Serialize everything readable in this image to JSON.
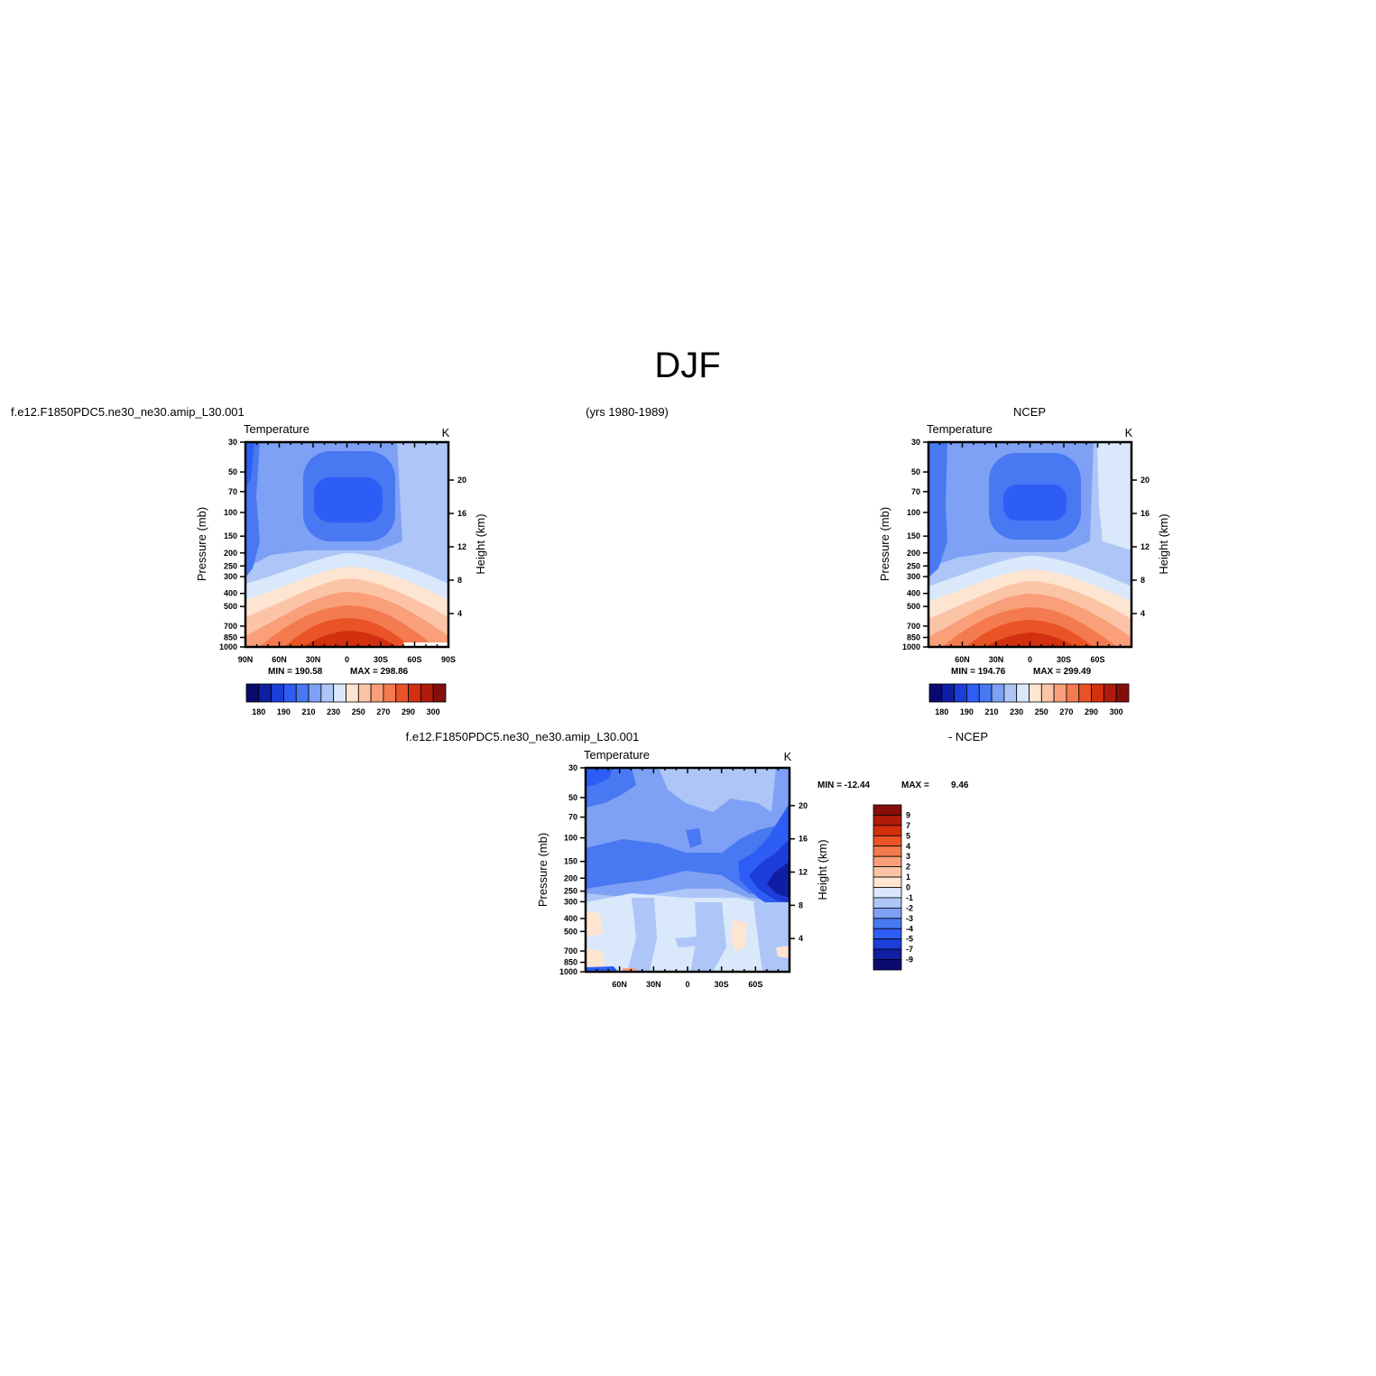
{
  "page": {
    "title": "DJF"
  },
  "labels": {
    "model_case": "f.e12.F1850PDC5.ne30_ne30.amip_L30.001",
    "years": "(yrs 1980-1989)",
    "obs_name": "NCEP",
    "diff_case": "f.e12.F1850PDC5.ne30_ne30.amip_L30.001",
    "diff_minus": "- NCEP"
  },
  "colors": {
    "abs_levels": [
      "#0a0a6e",
      "#0f1fa3",
      "#1d3dd8",
      "#2e5df5",
      "#4878f2",
      "#7ea1f5",
      "#aec6f7",
      "#d9e8fb",
      "#fde5d2",
      "#fcc4a6",
      "#f99f7a",
      "#f47a4f",
      "#ea5326",
      "#d33010",
      "#b01a0a",
      "#840f0a"
    ],
    "diff_levels": [
      "#0a0a6e",
      "#0f1fa3",
      "#1d3dd8",
      "#2e5df5",
      "#4878f2",
      "#7ea1f5",
      "#aec6f7",
      "#d9e8fb",
      "#fde5d2",
      "#fcc4a6",
      "#f99f7a",
      "#f47a4f",
      "#ea5326",
      "#d33010",
      "#b01a0a",
      "#840f0a"
    ]
  },
  "chart_data": [
    {
      "type": "heatmap",
      "panel": "model",
      "title": "Temperature",
      "units": "K",
      "ylabel": "Pressure (mb)",
      "y2label": "Height (km)",
      "x_ticks": [
        "90N",
        "60N",
        "30N",
        "0",
        "30S",
        "60S",
        "90S"
      ],
      "y_ticks": [
        "30",
        "50",
        "70",
        "100",
        "150",
        "200",
        "250",
        "300",
        "400",
        "500",
        "700",
        "850",
        "1000"
      ],
      "y2_ticks": [
        "20",
        "16",
        "12",
        "8",
        "4"
      ],
      "xlim": [
        90,
        -90
      ],
      "ylim": [
        1000,
        30
      ],
      "y_scale": "log",
      "min_label": "MIN = 190.58",
      "max_label": "MAX = 298.86",
      "colorbar_ticks": [
        "180",
        "190",
        "210",
        "230",
        "250",
        "270",
        "290",
        "300"
      ]
    },
    {
      "type": "heatmap",
      "panel": "obs",
      "title": "Temperature",
      "units": "K",
      "ylabel": "Pressure (mb)",
      "y2label": "Height (km)",
      "x_ticks": [
        "60N",
        "30N",
        "0",
        "30S",
        "60S"
      ],
      "y_ticks": [
        "30",
        "50",
        "70",
        "100",
        "150",
        "200",
        "250",
        "300",
        "400",
        "500",
        "700",
        "850",
        "1000"
      ],
      "y2_ticks": [
        "20",
        "16",
        "12",
        "8",
        "4"
      ],
      "xlim": [
        90,
        -90
      ],
      "ylim": [
        1000,
        30
      ],
      "y_scale": "log",
      "min_label": "MIN = 194.76",
      "max_label": "MAX = 299.49",
      "colorbar_ticks": [
        "180",
        "190",
        "210",
        "230",
        "250",
        "270",
        "290",
        "300"
      ]
    },
    {
      "type": "heatmap",
      "panel": "difference",
      "title": "Temperature",
      "units": "K",
      "ylabel": "Pressure (mb)",
      "y2label": "Height (km)",
      "x_ticks": [
        "60N",
        "30N",
        "0",
        "30S",
        "60S"
      ],
      "y_ticks": [
        "30",
        "50",
        "70",
        "100",
        "150",
        "200",
        "250",
        "300",
        "400",
        "500",
        "700",
        "850",
        "1000"
      ],
      "y2_ticks": [
        "20",
        "16",
        "12",
        "8",
        "4"
      ],
      "xlim": [
        90,
        -90
      ],
      "ylim": [
        1000,
        30
      ],
      "y_scale": "log",
      "min_label": "MIN = -12.44",
      "max_label": "MAX =",
      "max_value": "9.46",
      "colorbar_ticks": [
        "9",
        "7",
        "5",
        "4",
        "3",
        "2",
        "1",
        "0",
        "-1",
        "-2",
        "-3",
        "-4",
        "-5",
        "-7",
        "-9"
      ]
    }
  ]
}
